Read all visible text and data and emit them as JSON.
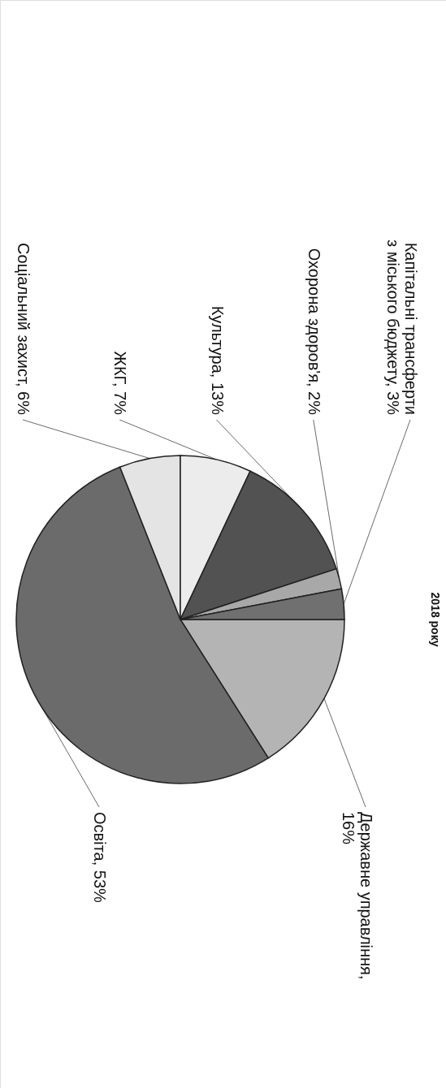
{
  "chart_data": {
    "type": "pie",
    "title": "2018 року",
    "categories": [
      "Державне управління, 16%",
      "Освіта, 53%",
      "Соціальний захист, 6%",
      "ЖКГ, 7%",
      "Культура, 13%",
      "Охорона здоров'я, 2%",
      "Капітальні трансферти з міського бюджету, 3%"
    ],
    "values": [
      16,
      53,
      6,
      7,
      13,
      2,
      3
    ],
    "colors": [
      "#b4b4b4",
      "#6b6b6b",
      "#e4e4e4",
      "#ececec",
      "#525252",
      "#a8a8a8",
      "#707070"
    ]
  }
}
